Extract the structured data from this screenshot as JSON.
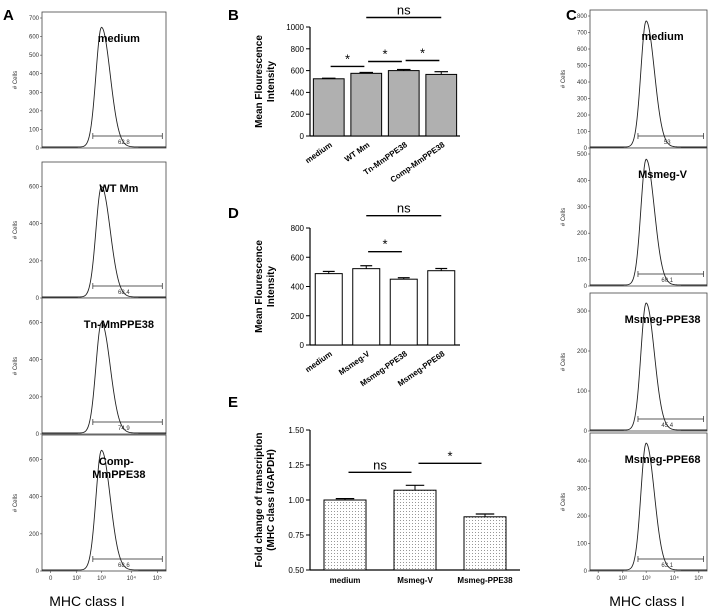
{
  "figure": {
    "panel_letters": {
      "a": "A",
      "b": "B",
      "c": "C",
      "d": "D",
      "e": "E"
    },
    "x_axis_title": "MHC class I",
    "hist_y_title": "# Cells"
  },
  "chart_data": [
    {
      "id": "A",
      "type": "histogram",
      "xlabel": "MHC class I",
      "ylabel": "# Cells",
      "x_ticks": [
        "0",
        "10²",
        "10³",
        "10⁴",
        "10⁵"
      ],
      "panels": [
        {
          "label": "medium",
          "y_ticks": [
            "0",
            "100",
            "200",
            "300",
            "400",
            "500",
            "600",
            "700"
          ],
          "ymax": 700,
          "peak": 650,
          "gate_value": "62.8"
        },
        {
          "label": "WT Mm",
          "y_ticks": [
            "0",
            "200",
            "400",
            "600"
          ],
          "ymax": 700,
          "peak": 600,
          "gate_value": "68.4"
        },
        {
          "label": "Tn-MmPPE38",
          "y_ticks": [
            "0",
            "200",
            "400",
            "600"
          ],
          "ymax": 700,
          "peak": 600,
          "gate_value": "74.9"
        },
        {
          "label": "Comp-\nMmPPE38",
          "label_lines": [
            "Comp-",
            "MmPPE38"
          ],
          "y_ticks": [
            "0",
            "200",
            "400",
            "600"
          ],
          "ymax": 700,
          "peak": 650,
          "gate_value": "68.6"
        }
      ]
    },
    {
      "id": "B",
      "type": "bar",
      "categories": [
        "medium",
        "WT Mm",
        "Tn-MmPPE38",
        "Comp-MmPPE38"
      ],
      "values": [
        525,
        575,
        600,
        565
      ],
      "errors": [
        5,
        8,
        10,
        25
      ],
      "ylabel": "Mean Flourescence\nIntensity",
      "ylabel_lines": [
        "Mean Flourescence",
        "Intensity"
      ],
      "ylim": [
        0,
        1000
      ],
      "y_ticks": [
        "0",
        "200",
        "400",
        "600",
        "800",
        "1000"
      ],
      "fill": "#b0b0b0",
      "significance": [
        {
          "from": 0,
          "to": 1,
          "label": "*"
        },
        {
          "from": 1,
          "to": 2,
          "label": "*"
        },
        {
          "from": 2,
          "to": 3,
          "label": "*"
        },
        {
          "from": 1,
          "to": 3,
          "label": "ns"
        }
      ]
    },
    {
      "id": "D",
      "type": "bar",
      "categories": [
        "medium",
        "Msmeg-V",
        "Msmeg-PPE38",
        "Msmeg-PPE68"
      ],
      "values": [
        488,
        522,
        450,
        508
      ],
      "errors": [
        15,
        20,
        10,
        15
      ],
      "ylabel": "Mean Flourescence\nIntensity",
      "ylabel_lines": [
        "Mean Flourescence",
        "Intensity"
      ],
      "ylim": [
        0,
        800
      ],
      "y_ticks": [
        "0",
        "200",
        "400",
        "600",
        "800"
      ],
      "fill": "#ffffff",
      "significance": [
        {
          "from": 1,
          "to": 2,
          "label": "*"
        },
        {
          "from": 1,
          "to": 3,
          "label": "ns"
        }
      ]
    },
    {
      "id": "E",
      "type": "bar",
      "categories": [
        "medium",
        "Msmeg-V",
        "Msmeg-PPE38"
      ],
      "values": [
        1.0,
        1.07,
        0.88
      ],
      "errors": [
        0.01,
        0.035,
        0.02
      ],
      "ylabel": "Fold change of transcription\n(MHC class I/GAPDH)",
      "ylabel_lines": [
        "Fold change of transcription",
        "(MHC class I/GAPDH)"
      ],
      "ylim": [
        0.5,
        1.5
      ],
      "y_ticks": [
        "0.50",
        "0.75",
        "1.00",
        "1.25",
        "1.50"
      ],
      "fill": "dotted",
      "significance": [
        {
          "from": 0,
          "to": 1,
          "label": "ns"
        },
        {
          "from": 1,
          "to": 2,
          "label": "*"
        }
      ]
    },
    {
      "id": "C",
      "type": "histogram",
      "xlabel": "MHC class I",
      "ylabel": "# Cells",
      "x_ticks": [
        "0",
        "10²",
        "10³",
        "10⁴",
        "10⁵"
      ],
      "panels": [
        {
          "label": "medium",
          "y_ticks": [
            "0",
            "100",
            "200",
            "300",
            "400",
            "500",
            "600",
            "700",
            "800"
          ],
          "ymax": 800,
          "peak": 770,
          "gate_value": "53"
        },
        {
          "label": "Msmeg-V",
          "y_ticks": [
            "0",
            "100",
            "200",
            "300",
            "400",
            "500"
          ],
          "ymax": 500,
          "peak": 480,
          "gate_value": "60.1"
        },
        {
          "label": "Msmeg-PPE38",
          "y_ticks": [
            "0",
            "100",
            "200",
            "300"
          ],
          "ymax": 330,
          "peak": 320,
          "gate_value": "45.4"
        },
        {
          "label": "Msmeg-PPE68",
          "y_ticks": [
            "0",
            "100",
            "200",
            "300",
            "400"
          ],
          "ymax": 480,
          "peak": 465,
          "gate_value": "63.1"
        }
      ]
    }
  ]
}
